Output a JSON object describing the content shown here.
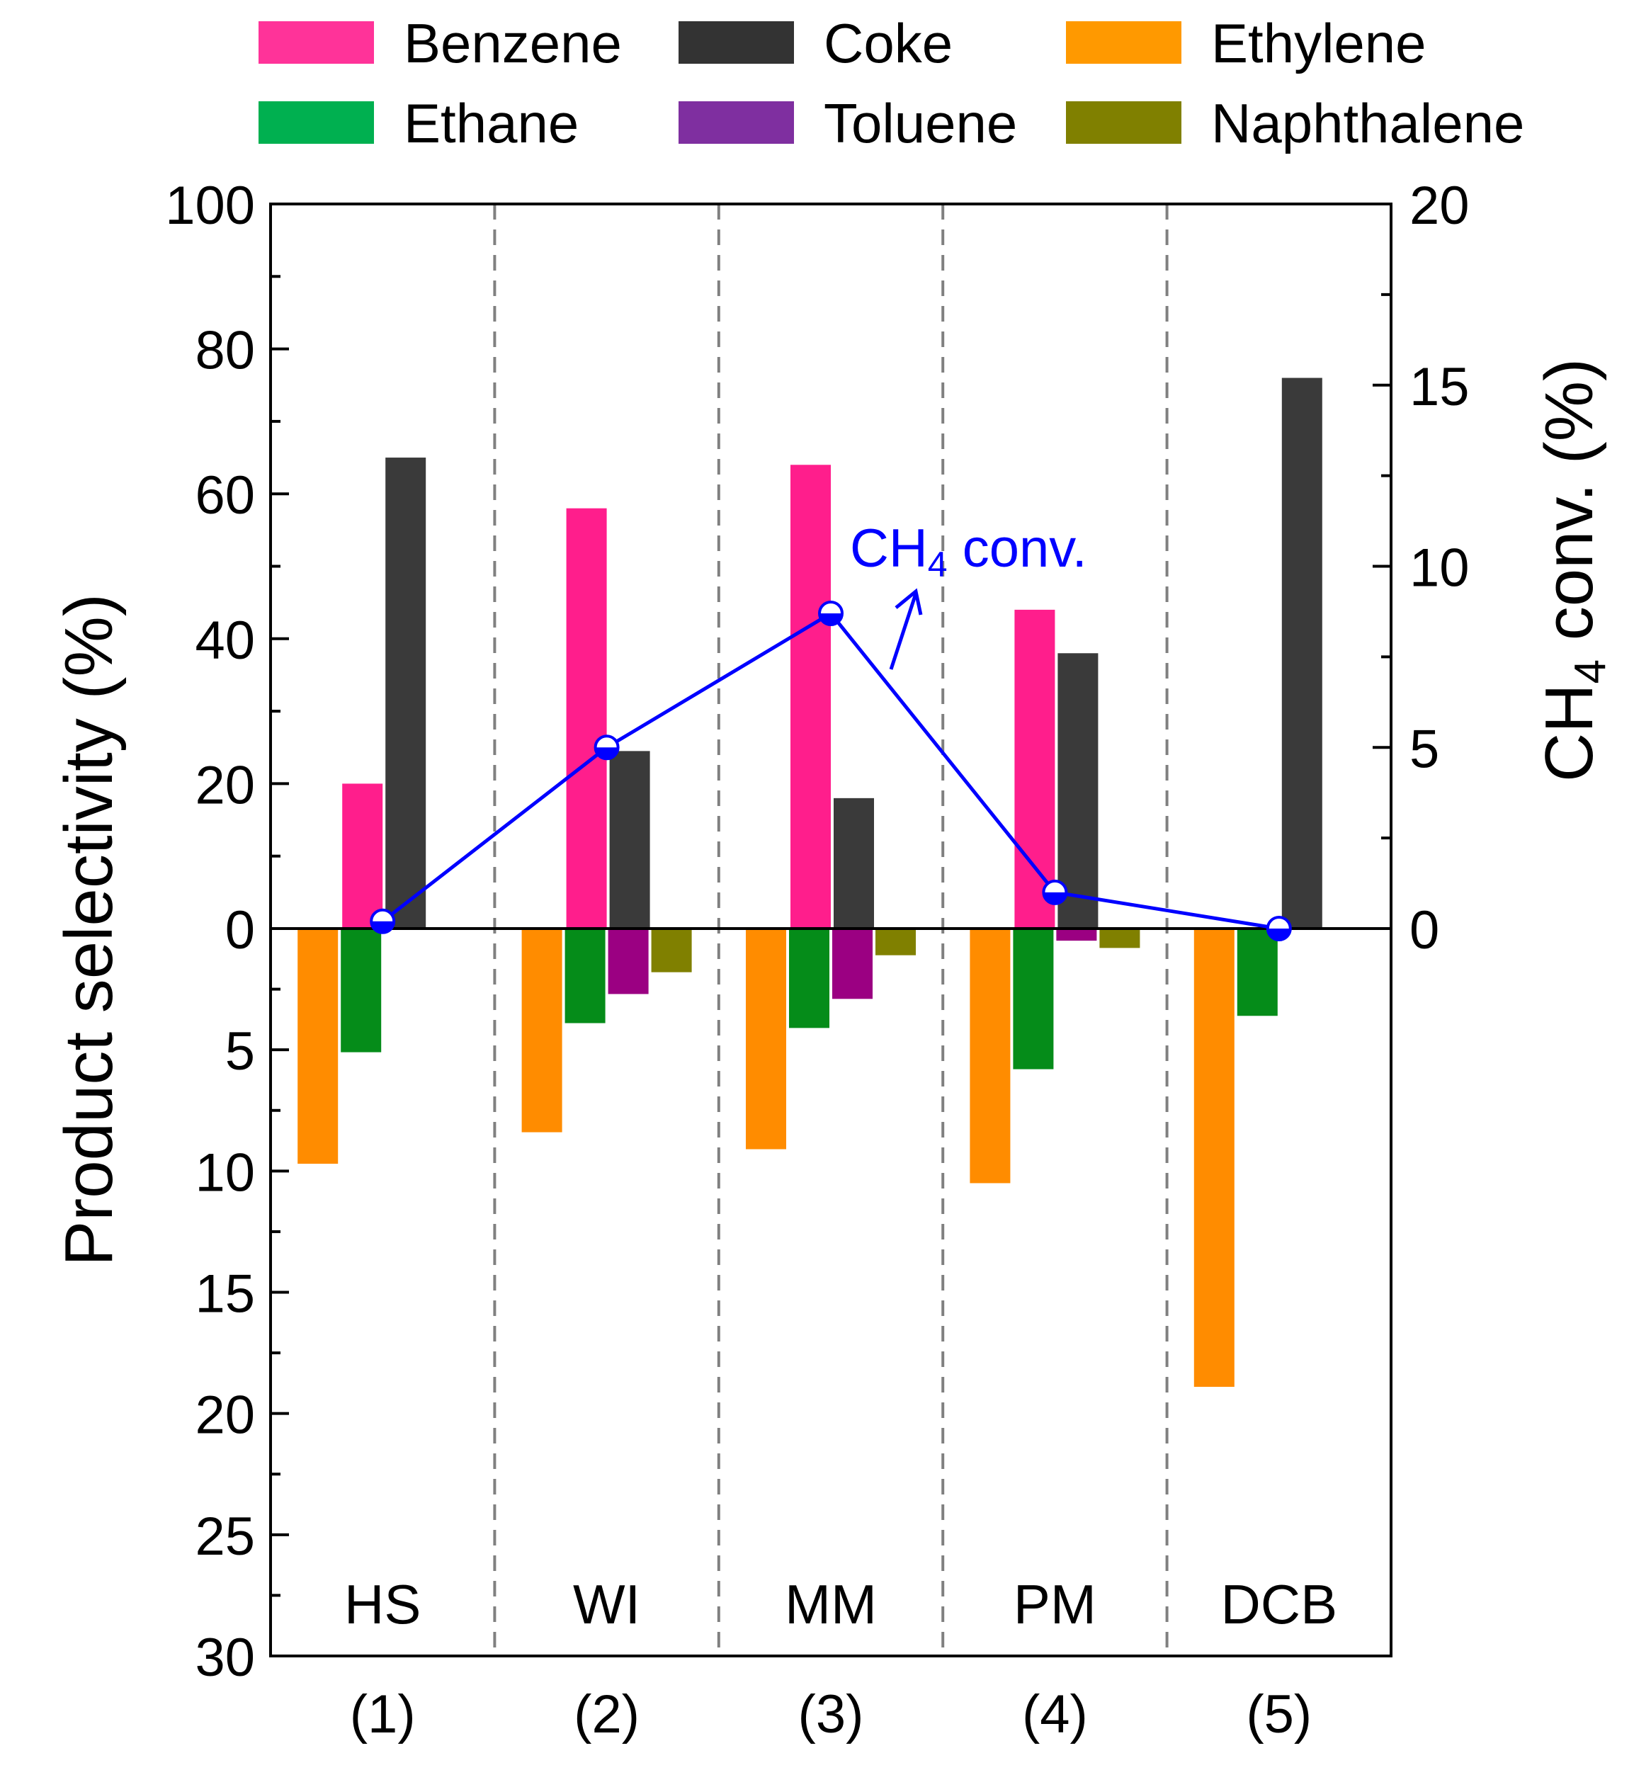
{
  "chart_data": {
    "type": "bar",
    "title": "",
    "ylabel": "Product  selectivity (%)",
    "y2label_main": "CH",
    "y2label_sub": "4",
    "y2label_tail": " conv. (%)",
    "upper_ylim": [
      0,
      100
    ],
    "lower_ylim": [
      0,
      30
    ],
    "y2lim": [
      0,
      20
    ],
    "upper_ticks": [
      "100",
      "80",
      "60",
      "40",
      "20",
      "0"
    ],
    "lower_ticks": [
      "5",
      "10",
      "15",
      "20",
      "25",
      "30"
    ],
    "right_ticks": [
      "20",
      "15",
      "10",
      "5",
      "0"
    ],
    "categories": [
      "(1)",
      "(2)",
      "(3)",
      "(4)",
      "(5)"
    ],
    "group_labels": [
      "HS",
      "WI",
      "MM",
      "PM",
      "DCB"
    ],
    "upper_series": [
      {
        "name": "Benzene",
        "color": "#ff1e8c",
        "values": [
          20,
          58,
          64,
          44,
          0
        ]
      },
      {
        "name": "Coke",
        "color": "#3a3a3a",
        "values": [
          65,
          24.5,
          18,
          38,
          76
        ]
      }
    ],
    "lower_series": [
      {
        "name": "Ethylene",
        "color": "#ff8c00",
        "values": [
          9.7,
          8.4,
          9.1,
          10.5,
          18.9
        ]
      },
      {
        "name": "Ethane",
        "color": "#058c19",
        "values": [
          5.1,
          3.9,
          4.1,
          5.8,
          3.6
        ]
      },
      {
        "name": "Toluene",
        "color": "#9b0082",
        "values": [
          0,
          2.7,
          2.9,
          0.5,
          0
        ]
      },
      {
        "name": "Naphthalene",
        "color": "#808000",
        "values": [
          0,
          1.8,
          1.1,
          0.8,
          0
        ]
      }
    ],
    "line_series": {
      "name": "CH4 conv.",
      "color": "#0000ff",
      "values": [
        0.2,
        5.0,
        8.7,
        1.0,
        0.0
      ]
    },
    "annotation": {
      "text_main": "CH",
      "text_sub": "4",
      "text_tail": " conv."
    },
    "legend": {
      "placement": "top",
      "entries": [
        {
          "name": "Benzene",
          "color": "#ff3399"
        },
        {
          "name": "Coke",
          "color": "#333333"
        },
        {
          "name": "Ethylene",
          "color": "#ff9900"
        },
        {
          "name": "Ethane",
          "color": "#00b050"
        },
        {
          "name": "Toluene",
          "color": "#7f2fa0"
        },
        {
          "name": "Naphthalene",
          "color": "#808000"
        }
      ]
    }
  }
}
